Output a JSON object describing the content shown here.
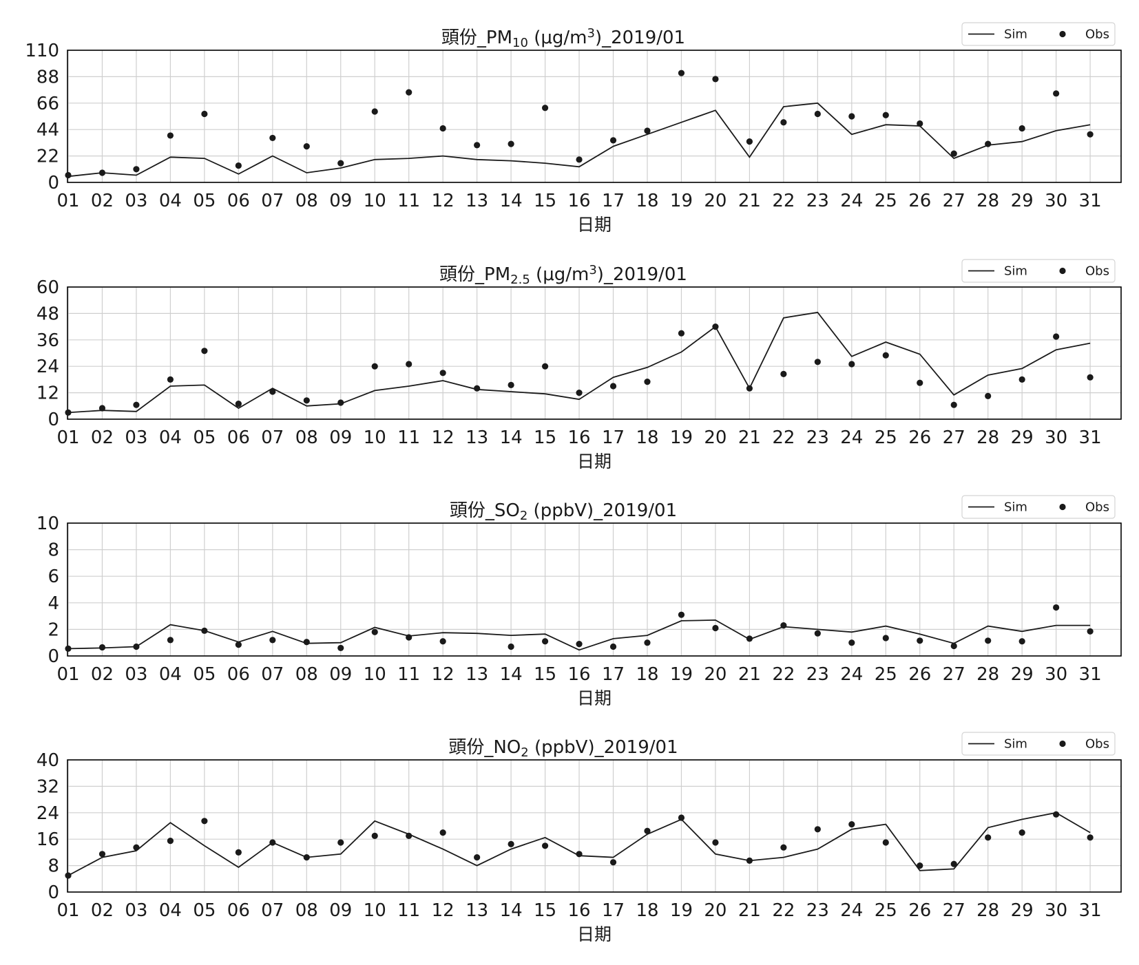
{
  "legend": {
    "sim_label": "Sim",
    "obs_label": "Obs",
    "position": "top-right"
  },
  "colors": {
    "sim": "#1a1a1a",
    "obs": "#1a1a1a",
    "grid": "#cfcfcf",
    "frame": "#000000"
  },
  "chart_data": [
    {
      "type": "line",
      "title_parts": [
        {
          "text": "頭份_PM"
        },
        {
          "text": "10",
          "sub": true
        },
        {
          "text": " (μg/m"
        },
        {
          "text": "3",
          "sup": true
        },
        {
          "text": ")_2019/01"
        }
      ],
      "xlabel": "日期",
      "ylabel": "",
      "categories": [
        "01",
        "02",
        "03",
        "04",
        "05",
        "06",
        "07",
        "08",
        "09",
        "10",
        "11",
        "12",
        "13",
        "14",
        "15",
        "16",
        "17",
        "18",
        "19",
        "20",
        "21",
        "22",
        "23",
        "24",
        "25",
        "26",
        "27",
        "28",
        "29",
        "30",
        "31"
      ],
      "ylim": [
        0,
        110
      ],
      "yticks": [
        0,
        22,
        44,
        66,
        88,
        110
      ],
      "grid": true,
      "series": [
        {
          "name": "Sim",
          "kind": "line",
          "values": [
            5,
            8,
            6,
            21,
            20,
            7,
            22,
            8,
            12,
            19,
            20,
            22,
            19,
            18,
            16,
            13,
            30,
            40,
            50,
            60,
            21,
            63,
            66,
            40,
            48,
            47,
            20,
            31,
            34,
            43,
            48
          ]
        },
        {
          "name": "Obs",
          "kind": "scatter",
          "values": [
            6,
            8,
            11,
            39,
            57,
            14,
            37,
            30,
            16,
            59,
            75,
            45,
            31,
            32,
            62,
            19,
            35,
            43,
            91,
            86,
            34,
            50,
            57,
            55,
            56,
            49,
            24,
            32,
            45,
            74,
            40
          ]
        }
      ]
    },
    {
      "type": "line",
      "title_parts": [
        {
          "text": "頭份_PM"
        },
        {
          "text": "2.5",
          "sub": true
        },
        {
          "text": " (μg/m"
        },
        {
          "text": "3",
          "sup": true
        },
        {
          "text": ")_2019/01"
        }
      ],
      "xlabel": "日期",
      "ylabel": "",
      "categories": [
        "01",
        "02",
        "03",
        "04",
        "05",
        "06",
        "07",
        "08",
        "09",
        "10",
        "11",
        "12",
        "13",
        "14",
        "15",
        "16",
        "17",
        "18",
        "19",
        "20",
        "21",
        "22",
        "23",
        "24",
        "25",
        "26",
        "27",
        "28",
        "29",
        "30",
        "31"
      ],
      "ylim": [
        0,
        60
      ],
      "yticks": [
        0,
        12,
        24,
        36,
        48,
        60
      ],
      "grid": true,
      "series": [
        {
          "name": "Sim",
          "kind": "line",
          "values": [
            3,
            4,
            3.5,
            15,
            15.5,
            5,
            14,
            6,
            7,
            13,
            15,
            17.5,
            13.5,
            12.5,
            11.5,
            9,
            19,
            23.5,
            30.5,
            42,
            14,
            46,
            48.5,
            28.5,
            35,
            29.5,
            11,
            20,
            23,
            31.5,
            34.5
          ]
        },
        {
          "name": "Obs",
          "kind": "scatter",
          "values": [
            3,
            5,
            6.5,
            18,
            31,
            7,
            12.5,
            8.5,
            7.5,
            24,
            25,
            21,
            14,
            15.5,
            24,
            12,
            15,
            17,
            39,
            42,
            14,
            20.5,
            26,
            25,
            29,
            16.5,
            6.5,
            10.5,
            18,
            37.5,
            19
          ]
        }
      ]
    },
    {
      "type": "line",
      "title_parts": [
        {
          "text": "頭份_SO"
        },
        {
          "text": "2",
          "sub": true
        },
        {
          "text": " (ppbV)_2019/01"
        }
      ],
      "xlabel": "日期",
      "ylabel": "",
      "categories": [
        "01",
        "02",
        "03",
        "04",
        "05",
        "06",
        "07",
        "08",
        "09",
        "10",
        "11",
        "12",
        "13",
        "14",
        "15",
        "16",
        "17",
        "18",
        "19",
        "20",
        "21",
        "22",
        "23",
        "24",
        "25",
        "26",
        "27",
        "28",
        "29",
        "30",
        "31"
      ],
      "ylim": [
        0,
        10
      ],
      "yticks": [
        0,
        2,
        4,
        6,
        8,
        10
      ],
      "grid": true,
      "series": [
        {
          "name": "Sim",
          "kind": "line",
          "values": [
            0.55,
            0.6,
            0.7,
            2.35,
            1.9,
            1.05,
            1.85,
            0.95,
            1.0,
            2.15,
            1.5,
            1.75,
            1.7,
            1.55,
            1.65,
            0.45,
            1.3,
            1.55,
            2.65,
            2.7,
            1.25,
            2.2,
            2.0,
            1.8,
            2.25,
            1.65,
            0.95,
            2.25,
            1.85,
            2.3,
            2.3
          ]
        },
        {
          "name": "Obs",
          "kind": "scatter",
          "values": [
            0.55,
            0.65,
            0.7,
            1.2,
            1.9,
            0.85,
            1.2,
            1.05,
            0.6,
            1.8,
            1.4,
            1.1,
            null,
            0.7,
            1.1,
            0.9,
            0.7,
            1.0,
            3.1,
            2.1,
            1.3,
            2.3,
            1.7,
            1.0,
            1.35,
            1.15,
            0.75,
            1.15,
            1.1,
            3.65,
            1.85
          ]
        }
      ]
    },
    {
      "type": "line",
      "title_parts": [
        {
          "text": "頭份_NO"
        },
        {
          "text": "2",
          "sub": true
        },
        {
          "text": " (ppbV)_2019/01"
        }
      ],
      "xlabel": "日期",
      "ylabel": "",
      "categories": [
        "01",
        "02",
        "03",
        "04",
        "05",
        "06",
        "07",
        "08",
        "09",
        "10",
        "11",
        "12",
        "13",
        "14",
        "15",
        "16",
        "17",
        "18",
        "19",
        "20",
        "21",
        "22",
        "23",
        "24",
        "25",
        "26",
        "27",
        "28",
        "29",
        "30",
        "31"
      ],
      "ylim": [
        0,
        40
      ],
      "yticks": [
        0,
        8,
        16,
        24,
        32,
        40
      ],
      "grid": true,
      "series": [
        {
          "name": "Sim",
          "kind": "line",
          "values": [
            5,
            10.5,
            12.5,
            21,
            14,
            7.5,
            15,
            10.5,
            11.5,
            21.5,
            17.5,
            13,
            8,
            13,
            16.5,
            11,
            10.5,
            17.5,
            22,
            11.5,
            9.5,
            10.5,
            13,
            19,
            20.5,
            6.5,
            7,
            19.5,
            22,
            24,
            18
          ]
        },
        {
          "name": "Obs",
          "kind": "scatter",
          "values": [
            5,
            11.5,
            13.5,
            15.5,
            21.5,
            12,
            15,
            10.5,
            15,
            17,
            17,
            18,
            10.5,
            14.5,
            14,
            11.5,
            9,
            18.5,
            22.5,
            15,
            9.5,
            13.5,
            19,
            20.5,
            15,
            8,
            8.5,
            16.5,
            18,
            23.5,
            16.5
          ]
        }
      ]
    }
  ]
}
